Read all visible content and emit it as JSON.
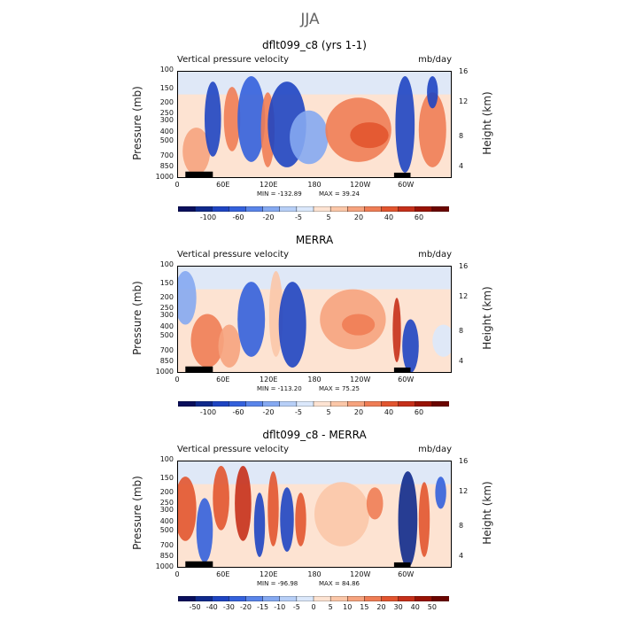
{
  "main_title": "JJA",
  "colors": {
    "deep_blue": "#08105a",
    "blue": "#2a52d6",
    "mid_blue": "#5d8ae8",
    "light_blue": "#b8d3f5",
    "white": "#ffffff",
    "light_orange": "#fbd1b7",
    "orange": "#f08a62",
    "red": "#d83a1e",
    "dark_red": "#7a0a04"
  },
  "chart_data": [
    {
      "type": "heatmap",
      "title": "dflt099_c8 (yrs 1-1)",
      "subtitle": "Vertical pressure velocity",
      "units": "mb/day",
      "ylabel": "Pressure (mb)",
      "y2label": "Height (km)",
      "x_ticks": [
        "0",
        "60E",
        "120E",
        "180",
        "120W",
        "60W"
      ],
      "y_ticks": [
        "100",
        "150",
        "200",
        "250",
        "300",
        "400",
        "500",
        "700",
        "850",
        "1000"
      ],
      "y2_ticks": [
        "16",
        "12",
        "8",
        "4"
      ],
      "min_label": "MIN = -132.89",
      "max_label": "MAX = 39.24",
      "colorbar_labels": [
        "-100",
        "-60",
        "-20",
        "-5",
        "5",
        "20",
        "40",
        "60"
      ],
      "colorbar_colors": [
        "#0a0f5c",
        "#102a8c",
        "#1f45c2",
        "#3461dc",
        "#5a85ea",
        "#85a9f1",
        "#b7cff7",
        "#dbe8fb",
        "#fde3d2",
        "#fbc7a8",
        "#f6a37e",
        "#ef7d55",
        "#e2552f",
        "#c6301a",
        "#991305",
        "#6b0500"
      ]
    },
    {
      "type": "heatmap",
      "title": "MERRA",
      "subtitle": "Vertical pressure velocity",
      "units": "mb/day",
      "ylabel": "Pressure (mb)",
      "y2label": "Height (km)",
      "x_ticks": [
        "0",
        "60E",
        "120E",
        "180",
        "120W",
        "60W"
      ],
      "y_ticks": [
        "100",
        "150",
        "200",
        "250",
        "300",
        "400",
        "500",
        "700",
        "850",
        "1000"
      ],
      "y2_ticks": [
        "16",
        "12",
        "8",
        "4"
      ],
      "min_label": "MIN = -113.20",
      "max_label": "MAX = 75.25",
      "colorbar_labels": [
        "-100",
        "-60",
        "-20",
        "-5",
        "5",
        "20",
        "40",
        "60"
      ],
      "colorbar_colors": [
        "#0a0f5c",
        "#102a8c",
        "#1f45c2",
        "#3461dc",
        "#5a85ea",
        "#85a9f1",
        "#b7cff7",
        "#dbe8fb",
        "#fde3d2",
        "#fbc7a8",
        "#f6a37e",
        "#ef7d55",
        "#e2552f",
        "#c6301a",
        "#991305",
        "#6b0500"
      ]
    },
    {
      "type": "heatmap",
      "title": "dflt099_c8 - MERRA",
      "subtitle": "Vertical pressure velocity",
      "units": "mb/day",
      "ylabel": "Pressure (mb)",
      "y2label": "Height (km)",
      "x_ticks": [
        "0",
        "60E",
        "120E",
        "180",
        "120W",
        "60W"
      ],
      "y_ticks": [
        "100",
        "150",
        "200",
        "250",
        "300",
        "400",
        "500",
        "700",
        "850",
        "1000"
      ],
      "y2_ticks": [
        "16",
        "12",
        "8",
        "4"
      ],
      "min_label": "MIN = -96.98",
      "max_label": "MAX = 84.86",
      "colorbar_labels": [
        "-50",
        "-40",
        "-30",
        "-20",
        "-15",
        "-10",
        "-5",
        "0",
        "5",
        "10",
        "15",
        "20",
        "30",
        "40",
        "50"
      ],
      "colorbar_colors": [
        "#0a0f5c",
        "#102a8c",
        "#1f45c2",
        "#3461dc",
        "#5a85ea",
        "#85a9f1",
        "#b7cff7",
        "#dbe8fb",
        "#fde3d2",
        "#fbc7a8",
        "#f6a37e",
        "#ef7d55",
        "#e2552f",
        "#c6301a",
        "#991305",
        "#6b0500"
      ]
    }
  ]
}
